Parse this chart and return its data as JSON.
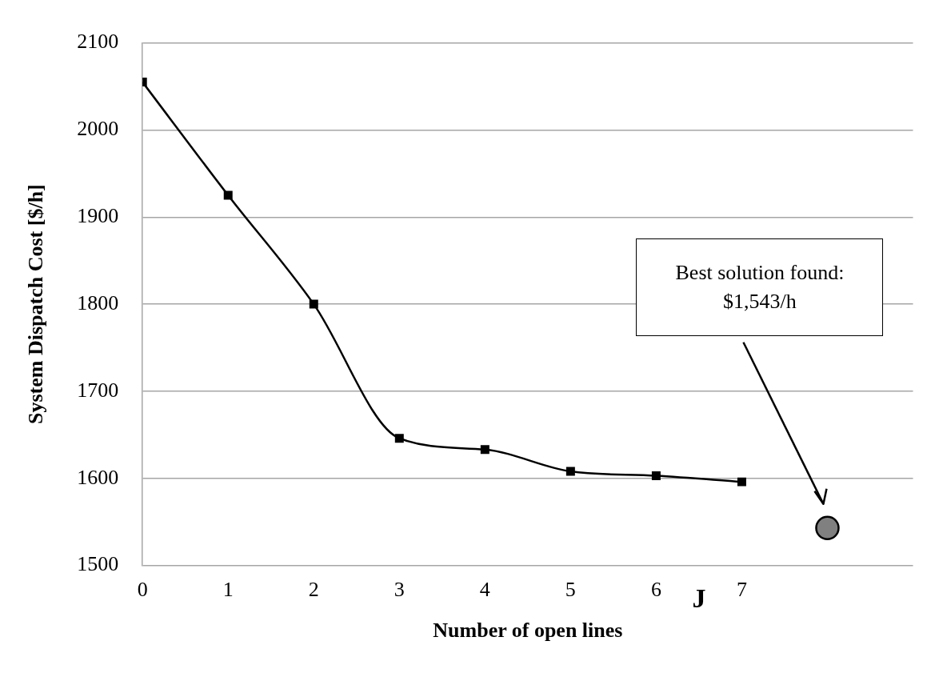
{
  "chart_data": {
    "type": "line",
    "xlabel": "Number of open lines",
    "ylabel": "System Dispatch Cost [$/h]",
    "x": [
      0,
      1,
      2,
      3,
      4,
      5,
      6,
      7
    ],
    "series": [
      {
        "type": "line",
        "color": "#000000",
        "marker": "square",
        "values": [
          2055,
          1925,
          1800,
          1646,
          1633,
          1608,
          1603,
          1596
        ]
      },
      {
        "type": "scatter",
        "color": "#808080",
        "marker": "circle",
        "x": [
          8
        ],
        "values": [
          1543
        ]
      }
    ],
    "xlim": [
      0,
      9
    ],
    "xticks": [
      0,
      1,
      2,
      3,
      4,
      5,
      6,
      7
    ],
    "ylim": [
      1500,
      2100
    ],
    "yticks": [
      1500,
      1600,
      1700,
      1800,
      1900,
      2000,
      2100
    ],
    "grid": "y",
    "line_style": "solid",
    "annotations": [
      "Best solution found: $1,543/h",
      "J"
    ]
  }
}
